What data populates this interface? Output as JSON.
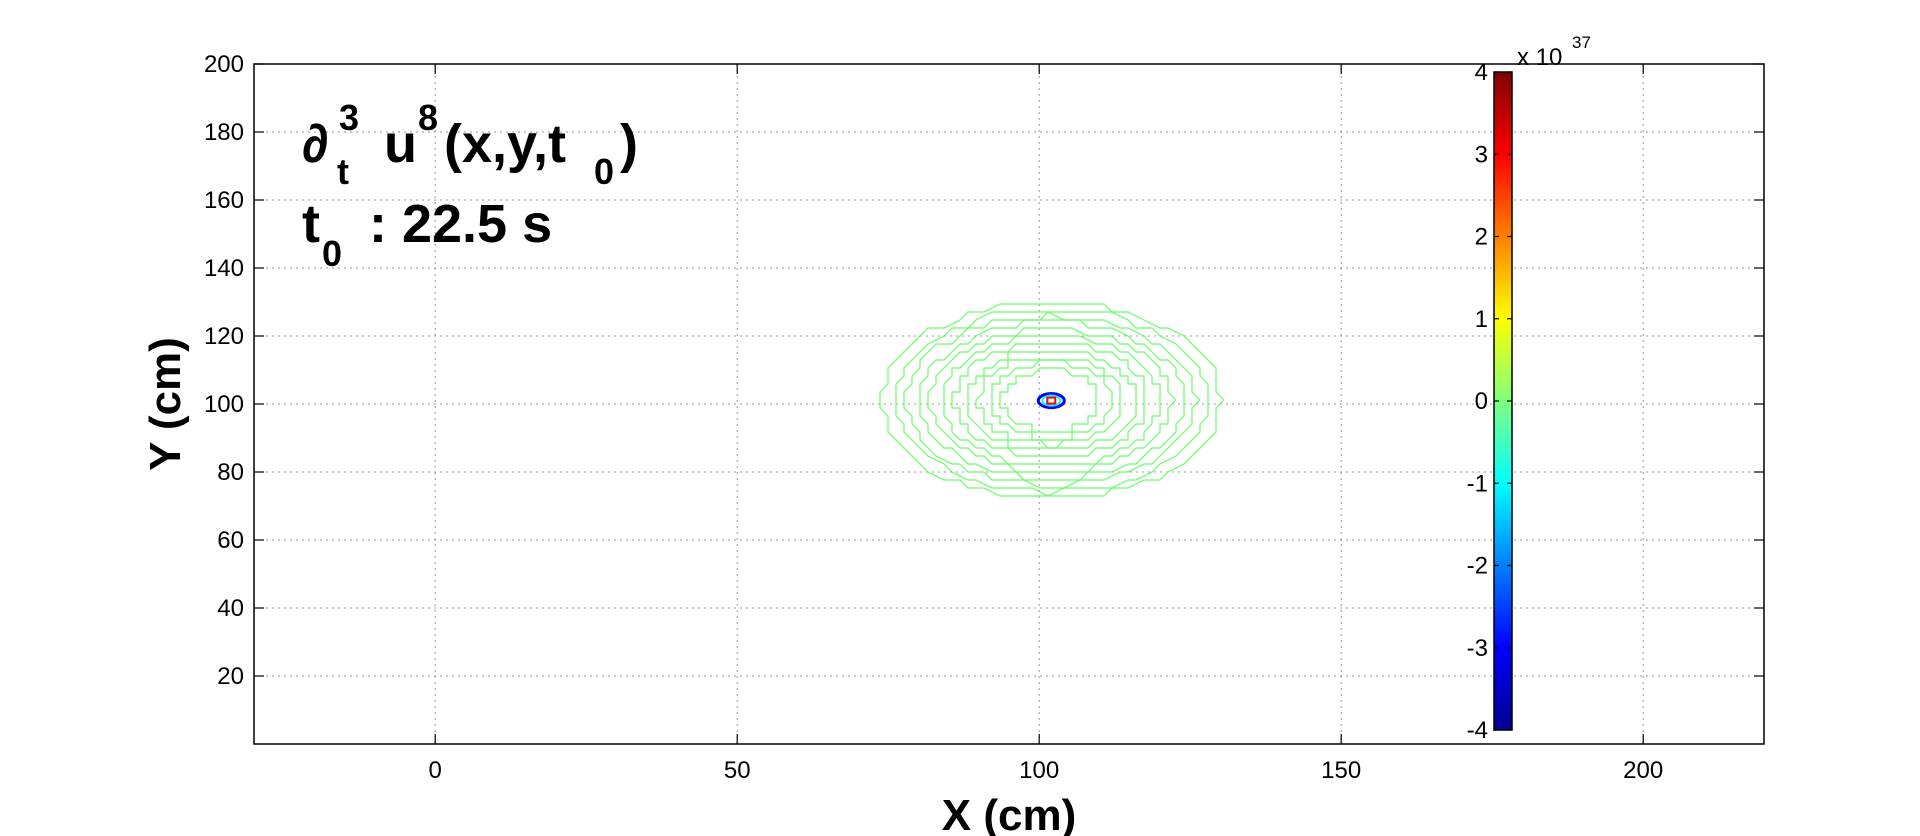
{
  "chart_data": {
    "type": "contour",
    "xlabel": "X (cm)",
    "ylabel": "Y (cm)",
    "xlim": [
      -30,
      220
    ],
    "ylim": [
      0,
      200
    ],
    "xticks": [
      0,
      50,
      100,
      150,
      200
    ],
    "yticks": [
      20,
      40,
      60,
      80,
      100,
      120,
      140,
      160,
      180,
      200
    ],
    "grid": true,
    "annotation": {
      "line1": {
        "partial": "∂",
        "sub": "t",
        "sup": "3",
        "main": "u",
        "main_sup": "8",
        "args": "(x,y,t",
        "args_sub": "0",
        "args_close": ")"
      },
      "line2": {
        "t": "t",
        "t_sub": "0",
        "text": " : 22.5 s"
      }
    },
    "contours": {
      "center": [
        102,
        101
      ],
      "color": "#66ff66",
      "rings_radii_x": [
        28,
        26,
        24,
        22,
        20,
        18,
        16,
        14,
        12,
        10,
        8
      ],
      "rings_radii_y": [
        29,
        27,
        25,
        23,
        21,
        19,
        17,
        15,
        13,
        11,
        9
      ],
      "core_markers": [
        "#0000ff",
        "#ff0000",
        "#00ffff"
      ]
    },
    "colorbar": {
      "ticks": [
        4,
        3,
        2,
        1,
        0,
        -1,
        -2,
        -3,
        -4
      ],
      "min": -4,
      "max": 4,
      "exponent_label": "x 10",
      "exponent": "37",
      "colormap": "jet"
    }
  }
}
